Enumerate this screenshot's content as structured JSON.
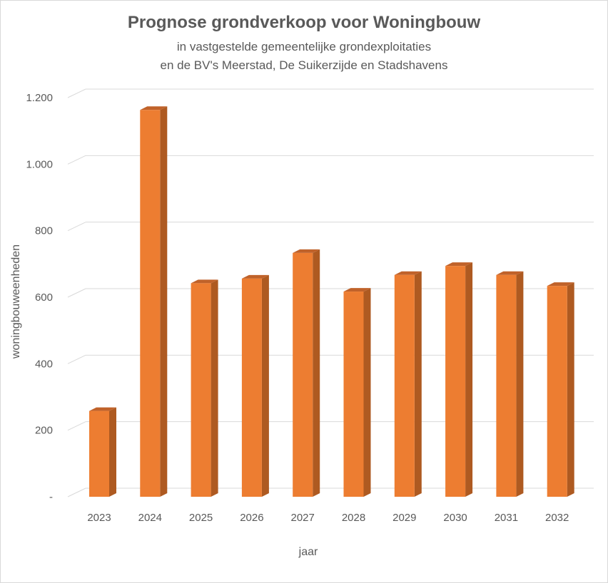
{
  "chart_data": {
    "type": "bar",
    "title": "Prognose grondverkoop voor Woningbouw",
    "subtitle": [
      "in vastgestelde gemeentelijke grondexploitaties",
      "en de BV's Meerstad, De Suikerzijde en Stadshavens"
    ],
    "xlabel": "jaar",
    "ylabel": "woningbouweenheden",
    "categories": [
      "2023",
      "2024",
      "2025",
      "2026",
      "2027",
      "2028",
      "2029",
      "2030",
      "2031",
      "2032"
    ],
    "values": [
      258,
      1163,
      642,
      656,
      733,
      617,
      667,
      694,
      667,
      634
    ],
    "ylim": [
      0,
      1200
    ],
    "yticks": [
      0,
      200,
      400,
      600,
      800,
      1000,
      1200
    ],
    "ytick_labels": [
      "-",
      "200",
      "400",
      "600",
      "800",
      "1.000",
      "1.200"
    ],
    "grid": true,
    "legend": "none",
    "bar_color": "#ed7d31",
    "bar_side_color": "#ae5a21",
    "bar_top_color": "#c0622a",
    "grid_color": "#d9d9d9",
    "text_color": "#595959"
  }
}
